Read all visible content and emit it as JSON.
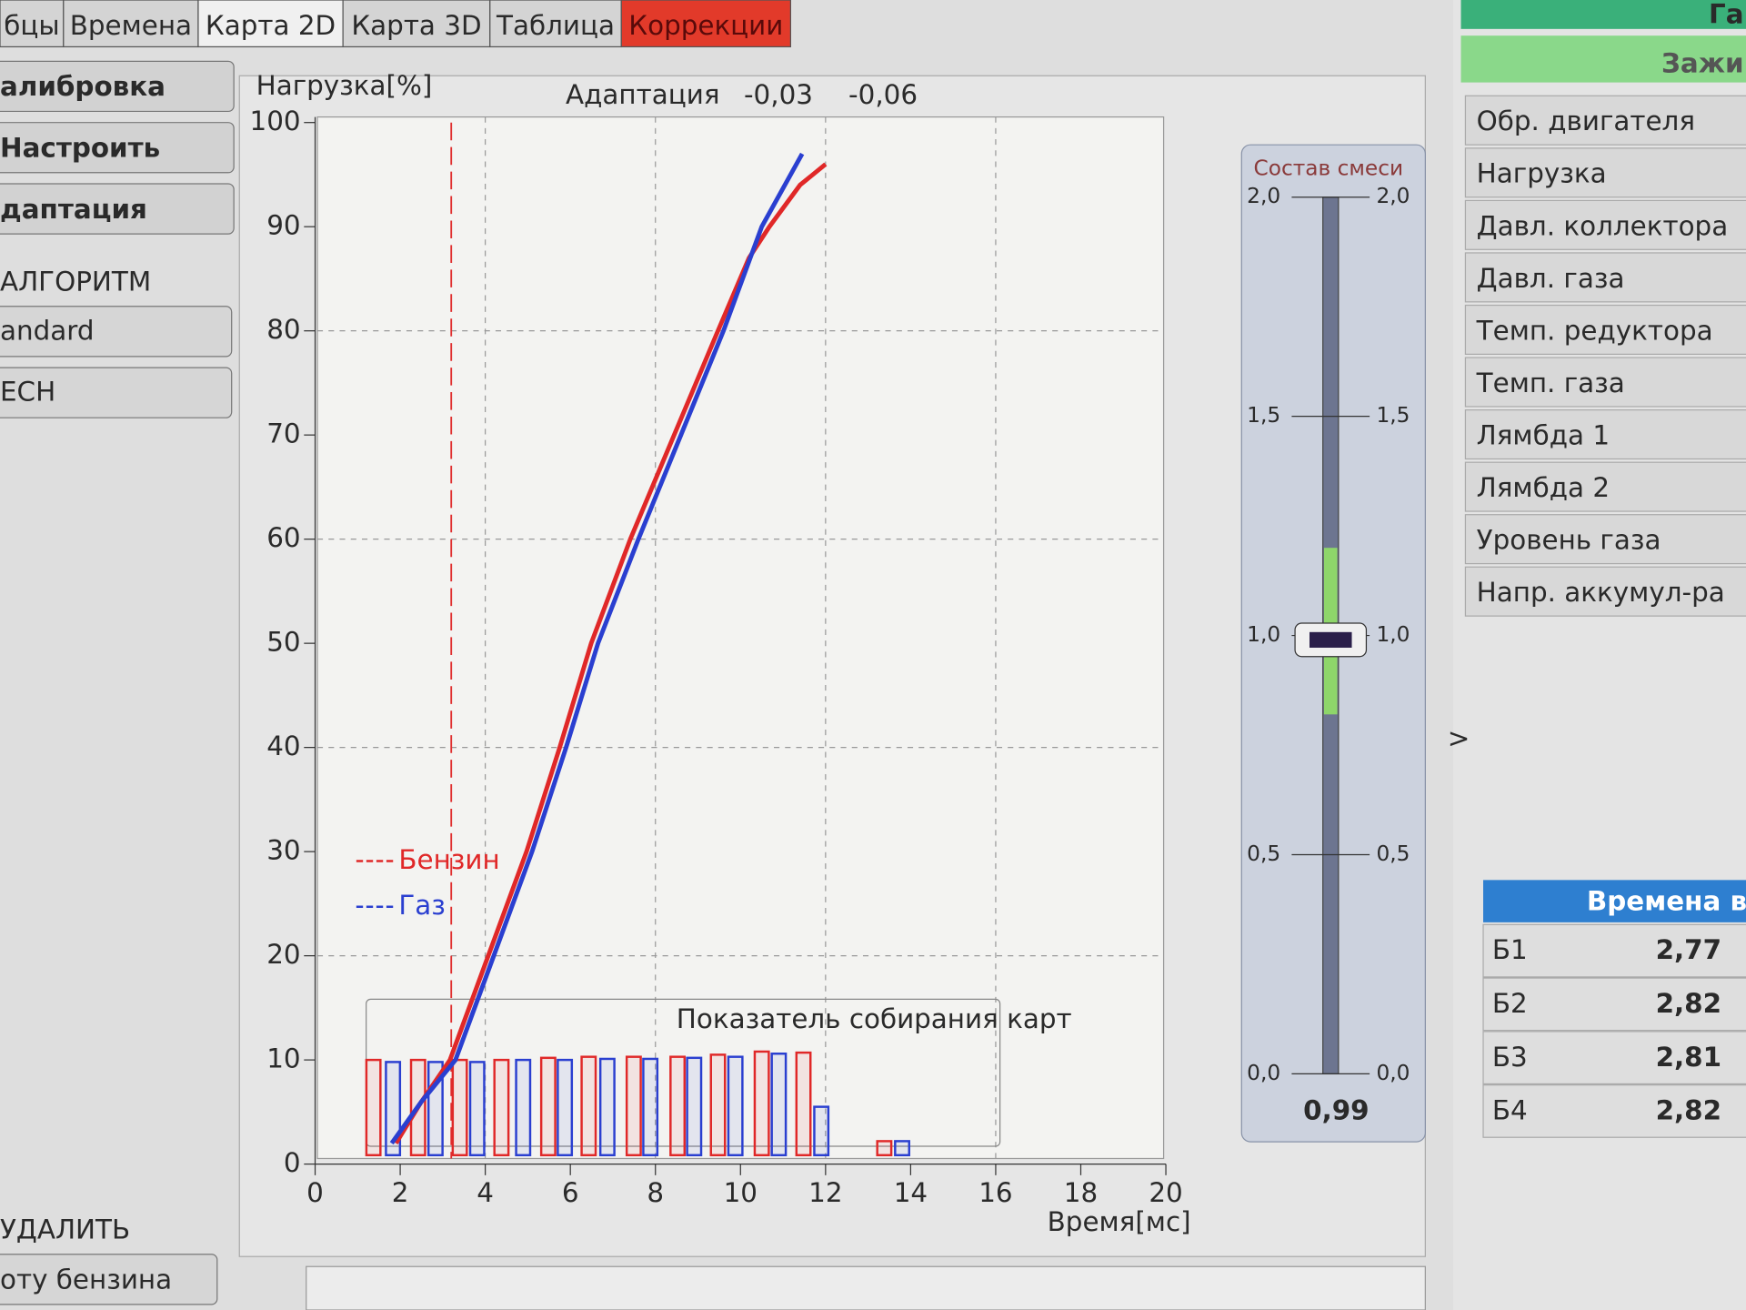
{
  "tabs": [
    "бцы",
    "Времена",
    "Карта 2D",
    "Карта 3D",
    "Таблица",
    "Коррекции"
  ],
  "left_panel": {
    "buttons": [
      "алибровка",
      "Настроить",
      "даптация"
    ],
    "algorithm_label": "АЛГОРИТМ",
    "algorithm_options": [
      "andard",
      "ЕСН"
    ],
    "delete_label": "УДАЛИТЬ",
    "delete_button": "оту бензина"
  },
  "chart_data": {
    "type": "line",
    "y_label": "Нагрузка[%]",
    "x_label": "Время[мс]",
    "annotations": [
      "Адаптация",
      "-0,03",
      "-0,06"
    ],
    "inset_title": "Показатель собирания карт",
    "xlim": [
      0,
      20
    ],
    "xticks": [
      0,
      2,
      4,
      6,
      8,
      10,
      12,
      14,
      16,
      18,
      20
    ],
    "ylim": [
      0,
      100
    ],
    "yticks": [
      0,
      10,
      20,
      30,
      40,
      50,
      60,
      70,
      80,
      90,
      100
    ],
    "xgrid": [
      4,
      8,
      12,
      16
    ],
    "ygrid": [
      20,
      40,
      60,
      80
    ],
    "marker_x": 3.2,
    "marker_color": "#e03030",
    "series": [
      {
        "name": "Бензин",
        "color": "#e02828",
        "x": [
          1.9,
          2.5,
          3.17,
          4.07,
          4.97,
          5.75,
          6.49,
          7.41,
          8.44,
          9.47,
          10.2,
          10.68,
          11.4,
          12.0
        ],
        "values": [
          2,
          6,
          10,
          20,
          30,
          40,
          50,
          60,
          70,
          80,
          87,
          90,
          94,
          96
        ]
      },
      {
        "name": "Газ",
        "color": "#2a3fd0",
        "x": [
          1.8,
          2.5,
          3.3,
          4.2,
          5.1,
          5.9,
          6.65,
          7.6,
          8.6,
          9.6,
          10.5,
          11.45
        ],
        "values": [
          2,
          6,
          10,
          20,
          30,
          40,
          50,
          60,
          70,
          80,
          90,
          97
        ]
      }
    ],
    "bar_sets": [
      {
        "color": "#e02828",
        "x": [
          1.37,
          2.42,
          3.4,
          4.38,
          5.48,
          6.43,
          7.49,
          8.52,
          9.47,
          10.5,
          11.48,
          13.38
        ],
        "values": [
          10,
          10,
          10,
          10,
          10.2,
          10.3,
          10.3,
          10.3,
          10.5,
          10.8,
          10.7,
          2.2
        ]
      },
      {
        "color": "#2a3fd0",
        "x": [
          1.83,
          2.83,
          3.81,
          4.89,
          5.87,
          6.87,
          7.88,
          8.91,
          9.88,
          10.9,
          11.9,
          13.8
        ],
        "values": [
          9.8,
          9.8,
          9.8,
          10,
          10,
          10.1,
          10.1,
          10.2,
          10.3,
          10.6,
          5.5,
          2.2
        ]
      }
    ]
  },
  "gauge": {
    "title": "Состав смеси",
    "ylim": [
      0,
      2
    ],
    "yticks": [
      {
        "value": 0,
        "label": "0,0"
      },
      {
        "value": 0.5,
        "label": "0,5"
      },
      {
        "value": 1,
        "label": "1,0"
      },
      {
        "value": 1.5,
        "label": "1,5"
      },
      {
        "value": 2,
        "label": "2,0"
      }
    ],
    "value": 0.99,
    "value_label": "0,99",
    "green_range": [
      0.82,
      1.2
    ]
  },
  "right_panel": {
    "top_labels": [
      "Га",
      "Зажи"
    ],
    "parameters": [
      "Обр. двигателя",
      "Нагрузка",
      "Давл. коллектора",
      "Давл. газа",
      "Темп. редуктора",
      "Темп. газа",
      "Лямбда 1",
      "Лямбда 2",
      "Уровень газа",
      "Напр. аккумул-ра"
    ],
    "expand_glyph": ">",
    "times_table": {
      "title": "Времена в",
      "rows": [
        [
          "Б1",
          "2,77"
        ],
        [
          "Б2",
          "2,82"
        ],
        [
          "Б3",
          "2,81"
        ],
        [
          "Б4",
          "2,82"
        ]
      ]
    }
  }
}
